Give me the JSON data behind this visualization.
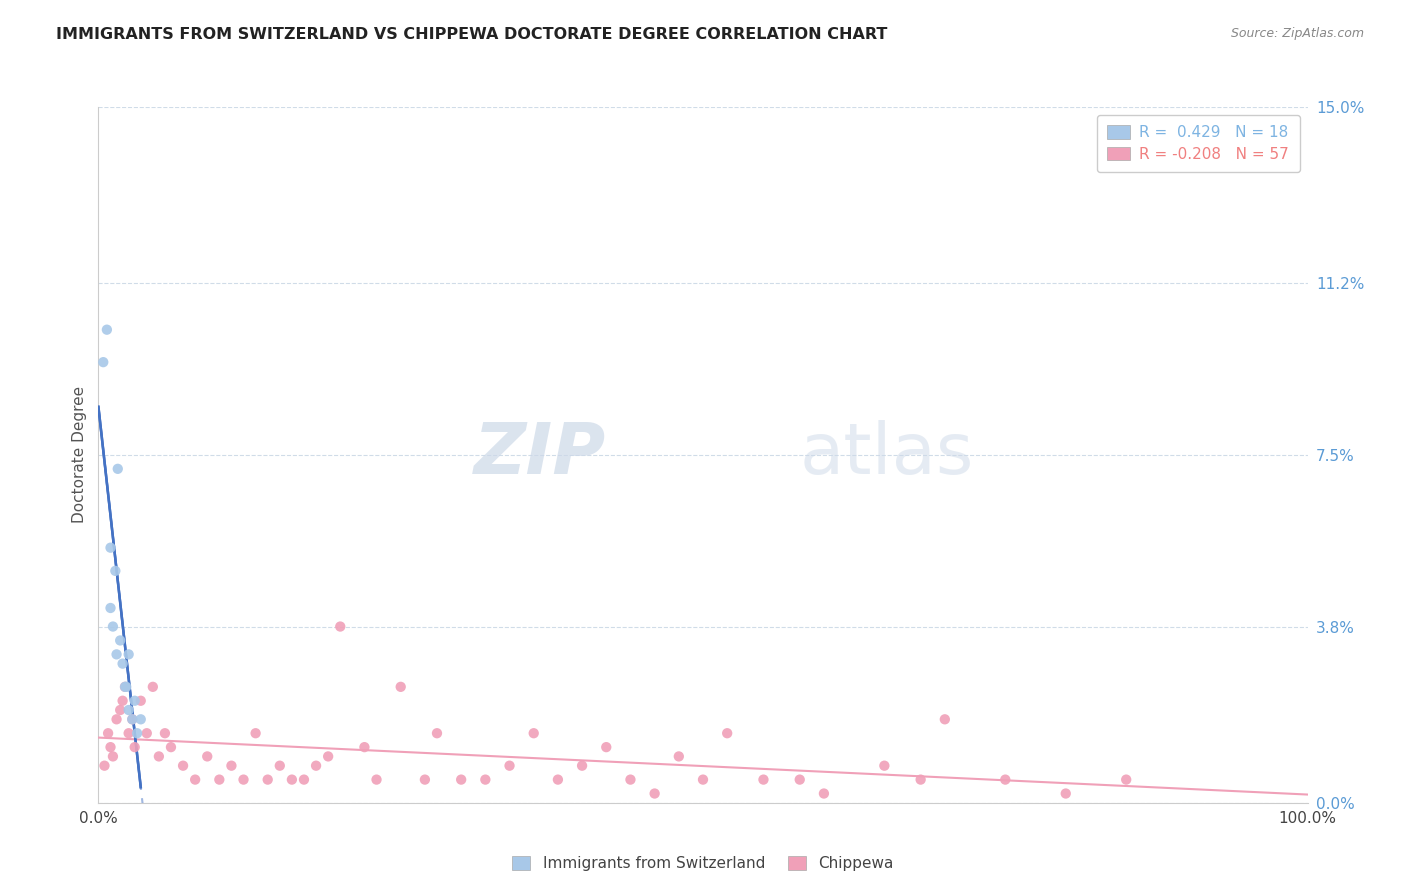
{
  "title": "IMMIGRANTS FROM SWITZERLAND VS CHIPPEWA DOCTORATE DEGREE CORRELATION CHART",
  "source": "Source: ZipAtlas.com",
  "ylabel": "Doctorate Degree",
  "ytick_values": [
    0.0,
    3.8,
    7.5,
    11.2,
    15.0
  ],
  "xmin": 0.0,
  "xmax": 100.0,
  "ymin": 0.0,
  "ymax": 15.0,
  "legend": [
    {
      "label": "R =  0.429   N = 18",
      "color": "#7eb4e2"
    },
    {
      "label": "R = -0.208   N = 57",
      "color": "#f08080"
    }
  ],
  "series1_color": "#a8c8e8",
  "series2_color": "#f0a0b8",
  "trendline1_color": "#4472c4",
  "trendline2_color": "#f0a0b8",
  "watermark_zip": "ZIP",
  "watermark_atlas": "atlas",
  "background_color": "#ffffff",
  "grid_color": "#d0dce8",
  "bottom_legend": [
    "Immigrants from Switzerland",
    "Chippewa"
  ],
  "scatter1_x": [
    0.4,
    0.7,
    1.0,
    1.0,
    1.2,
    1.4,
    1.5,
    1.6,
    1.8,
    2.0,
    2.2,
    2.3,
    2.5,
    2.5,
    2.8,
    3.0,
    3.2,
    3.5
  ],
  "scatter1_y": [
    9.5,
    10.2,
    4.2,
    5.5,
    3.8,
    5.0,
    3.2,
    7.2,
    3.5,
    3.0,
    2.5,
    2.5,
    3.2,
    2.0,
    1.8,
    2.2,
    1.5,
    1.8
  ],
  "scatter2_x": [
    0.5,
    0.8,
    1.0,
    1.2,
    1.5,
    1.8,
    2.0,
    2.2,
    2.5,
    2.8,
    3.0,
    3.5,
    4.0,
    4.5,
    5.0,
    5.5,
    6.0,
    7.0,
    8.0,
    9.0,
    10.0,
    11.0,
    12.0,
    13.0,
    14.0,
    15.0,
    16.0,
    17.0,
    18.0,
    19.0,
    20.0,
    22.0,
    23.0,
    25.0,
    27.0,
    28.0,
    30.0,
    32.0,
    34.0,
    36.0,
    38.0,
    40.0,
    42.0,
    44.0,
    46.0,
    48.0,
    50.0,
    52.0,
    55.0,
    58.0,
    60.0,
    65.0,
    68.0,
    70.0,
    75.0,
    80.0,
    85.0
  ],
  "scatter2_y": [
    0.8,
    1.5,
    1.2,
    1.0,
    1.8,
    2.0,
    2.2,
    2.5,
    1.5,
    1.8,
    1.2,
    2.2,
    1.5,
    2.5,
    1.0,
    1.5,
    1.2,
    0.8,
    0.5,
    1.0,
    0.5,
    0.8,
    0.5,
    1.5,
    0.5,
    0.8,
    0.5,
    0.5,
    0.8,
    1.0,
    3.8,
    1.2,
    0.5,
    2.5,
    0.5,
    1.5,
    0.5,
    0.5,
    0.8,
    1.5,
    0.5,
    0.8,
    1.2,
    0.5,
    0.2,
    1.0,
    0.5,
    1.5,
    0.5,
    0.5,
    0.2,
    0.8,
    0.5,
    1.8,
    0.5,
    0.2,
    0.5
  ]
}
